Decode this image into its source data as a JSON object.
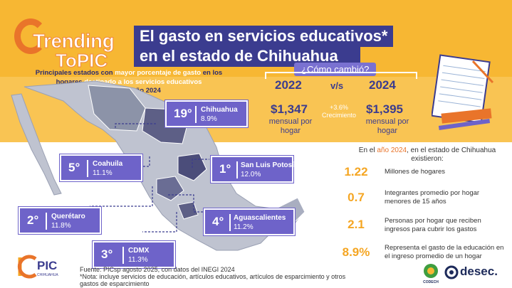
{
  "logo": {
    "line1": "Trending",
    "line2": "ToPIC"
  },
  "title": {
    "line1": "El gasto en servicios educativos*",
    "line2": "en el estado de Chihuahua"
  },
  "subtitle": {
    "p1": "Principales estados con ",
    "p2": "mayor porcentaje de gasto",
    "p3": " en los",
    "p4": "hogares",
    "p5": " destinado a los servicios educativos",
    "p6": "Durante el año 2024"
  },
  "states": [
    {
      "rank": "19°",
      "name": "Chihuahua",
      "pct": "8.9%"
    },
    {
      "rank": "5°",
      "name": "Coahuila",
      "pct": "11.1%"
    },
    {
      "rank": "1°",
      "name": "San Luis Potosí",
      "pct": "12.0%"
    },
    {
      "rank": "2°",
      "name": "Querétaro",
      "pct": "11.8%"
    },
    {
      "rank": "4°",
      "name": "Aguascalientes",
      "pct": "11.2%"
    },
    {
      "rank": "3°",
      "name": "CDMX",
      "pct": "11.3%"
    }
  ],
  "comparison": {
    "question": "¿Cómo cambió?",
    "year_a": "2022",
    "vs": "v/s",
    "year_b": "2024",
    "value_a": "$1,347",
    "value_b": "$1,395",
    "unit_a": "mensual por hogar",
    "unit_b": "mensual por hogar",
    "growth_value": "+3.6%",
    "growth_label": "Crecimiento"
  },
  "facts": {
    "intro_p1": "En el ",
    "intro_year": "año 2024",
    "intro_p2": ", en el estado de Chihuahua existieron:",
    "items": [
      {
        "value": "1.22",
        "text": "Millones de hogares"
      },
      {
        "value": "0.7",
        "text": "Integrantes promedio por hogar menores de 15 años"
      },
      {
        "value": "2.1",
        "text": "Personas por hogar que reciben ingresos para cubrir los gastos"
      },
      {
        "value": "8.9%",
        "text": "Representa el gasto de la educación en el ingreso promedio de un hogar"
      }
    ]
  },
  "source": {
    "line1": "Fuente: PICsp agosto 2025, con datos del INEGI 2024",
    "line2": "*Nota: incluye servicios de educación, artículos educativos, artículos de esparcimiento y otros gastos de esparcimiento"
  },
  "brand": {
    "pic": "PIC",
    "pic_small": "CHIHUAHUA",
    "codech": "CODECH",
    "desec": "desec."
  },
  "colors": {
    "band": "#f7b733",
    "purple": "#6e63c9",
    "navy": "#3b3c8f",
    "orange": "#e9742a",
    "stat": "#f5a623"
  }
}
